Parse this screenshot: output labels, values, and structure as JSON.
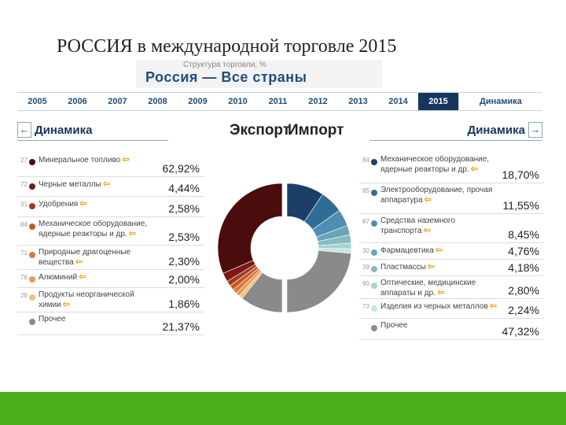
{
  "slide": {
    "title": "РОССИЯ в международной торговле 2015"
  },
  "banner": {
    "subtitle": "Структура торговли, %",
    "title": "Россия — Все страны"
  },
  "timeline": {
    "years": [
      "2005",
      "2006",
      "2007",
      "2008",
      "2009",
      "2010",
      "2011",
      "2012",
      "2013",
      "2014",
      "2015"
    ],
    "active": "2015",
    "dynamics_tab": "Динамика"
  },
  "headers": {
    "export": "Экспорт",
    "import": "Импорт",
    "dynamics_left": "Динамика",
    "dynamics_right": "Динамика"
  },
  "colors": {
    "accent": "#17365d",
    "change_icon": "#f0a500",
    "footer": "#4caf1c"
  },
  "chart_data": [
    {
      "type": "pie",
      "variant": "half-donut",
      "title": "Экспорт",
      "categories": [
        "Минеральное топливо",
        "Черные металлы",
        "Удобрения",
        "Механическое оборудование, ядерные реакторы и др.",
        "Природные драгоценные вещества",
        "Алюминий",
        "Продукты неорганической химии",
        "Прочее"
      ],
      "codes": [
        "27",
        "72",
        "31",
        "84",
        "71",
        "76",
        "28",
        ""
      ],
      "values": [
        62.92,
        4.44,
        2.58,
        2.53,
        2.3,
        2.0,
        1.86,
        21.37
      ],
      "labels": [
        "62,92%",
        "4,44%",
        "2,58%",
        "2,53%",
        "2,30%",
        "2,00%",
        "1,86%",
        "21,37%"
      ],
      "colors": [
        "#4a0c0c",
        "#7a1a14",
        "#a33a20",
        "#c25a28",
        "#d9793a",
        "#e89c55",
        "#f2c07e",
        "#8a8a8a"
      ]
    },
    {
      "type": "pie",
      "variant": "half-donut",
      "title": "Импорт",
      "categories": [
        "Механическое оборудование, ядерные реакторы и др.",
        "Электрооборудование, прочая аппаратура",
        "Средства наземного транспорта",
        "Фармацевтика",
        "Пластмассы",
        "Оптические, медицинские аппараты и др.",
        "Изделия из черных металлов",
        "Прочее"
      ],
      "codes": [
        "84",
        "85",
        "87",
        "30",
        "39",
        "90",
        "73",
        ""
      ],
      "values": [
        18.7,
        11.55,
        8.45,
        4.76,
        4.18,
        2.8,
        2.24,
        47.32
      ],
      "labels": [
        "18,70%",
        "11,55%",
        "8,45%",
        "4,76%",
        "4,18%",
        "2,80%",
        "2,24%",
        "47,32%"
      ],
      "colors": [
        "#1b3f66",
        "#2f6d96",
        "#4e8eb0",
        "#6aa4b8",
        "#86bcc0",
        "#a6d3cd",
        "#c7e6e0",
        "#8a8a8a"
      ]
    }
  ]
}
